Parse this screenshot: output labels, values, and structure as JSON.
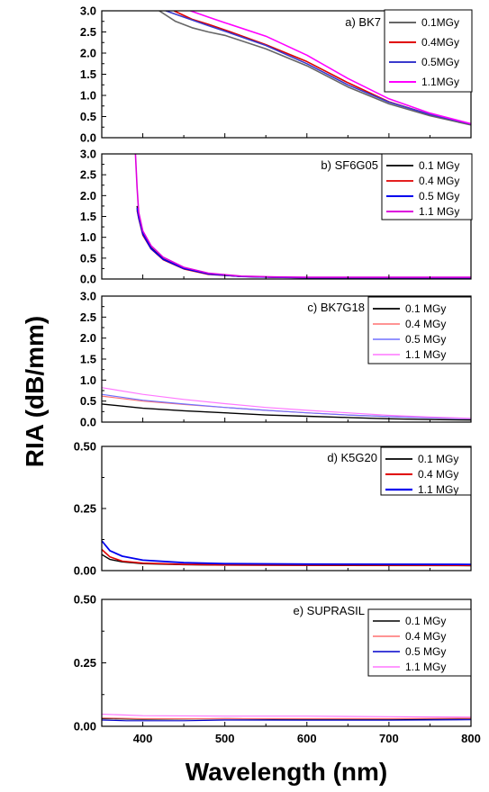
{
  "figure": {
    "ylabel": "RIA (dB/mm)",
    "xlabel": "Wavelength (nm)"
  },
  "chart_data": [
    {
      "type": "line",
      "panel_label": "a) BK7",
      "xlim": [
        350,
        800
      ],
      "ylim": [
        0,
        3.0
      ],
      "yticks": [
        "0.0",
        "0.5",
        "1.0",
        "1.5",
        "2.0",
        "2.5",
        "3.0"
      ],
      "xticks": [],
      "legend": "top-right",
      "series": [
        {
          "name": "0.1MGy",
          "color": "#666666",
          "width": 1.6,
          "x": [
            420,
            440,
            460,
            480,
            500,
            550,
            600,
            650,
            700,
            750,
            800
          ],
          "y": [
            3.0,
            2.75,
            2.6,
            2.5,
            2.42,
            2.1,
            1.7,
            1.2,
            0.8,
            0.52,
            0.3
          ]
        },
        {
          "name": "0.4MGy",
          "color": "#e00000",
          "width": 1.6,
          "x": [
            438,
            460,
            480,
            500,
            550,
            600,
            650,
            700,
            750,
            800
          ],
          "y": [
            3.0,
            2.8,
            2.68,
            2.55,
            2.2,
            1.8,
            1.3,
            0.85,
            0.55,
            0.32
          ]
        },
        {
          "name": "0.5MGy",
          "color": "#3a3acc",
          "width": 1.6,
          "x": [
            428,
            450,
            480,
            500,
            550,
            600,
            650,
            700,
            750,
            800
          ],
          "y": [
            3.0,
            2.85,
            2.65,
            2.52,
            2.18,
            1.75,
            1.25,
            0.84,
            0.55,
            0.32
          ]
        },
        {
          "name": "1.1MGy",
          "color": "#ff00ff",
          "width": 1.6,
          "x": [
            458,
            480,
            500,
            550,
            600,
            650,
            700,
            750,
            800
          ],
          "y": [
            3.0,
            2.85,
            2.72,
            2.4,
            1.95,
            1.4,
            0.92,
            0.58,
            0.33
          ]
        }
      ]
    },
    {
      "type": "line",
      "panel_label": "b) SF6G05",
      "xlim": [
        350,
        800
      ],
      "ylim": [
        0,
        3.0
      ],
      "yticks": [
        "0.0",
        "0.5",
        "1.0",
        "1.5",
        "2.0",
        "2.5",
        "3.0"
      ],
      "xticks": [],
      "legend": "top-right",
      "series": [
        {
          "name": "0.1 MGy",
          "color": "#000000",
          "width": 1.4,
          "x": [
            393,
            395,
            400,
            410,
            425,
            450,
            480,
            520,
            560,
            600,
            700,
            800
          ],
          "y": [
            1.75,
            1.5,
            1.1,
            0.75,
            0.48,
            0.25,
            0.12,
            0.06,
            0.04,
            0.03,
            0.03,
            0.03
          ]
        },
        {
          "name": "0.4 MGy",
          "color": "#e00000",
          "width": 1.4,
          "x": [
            393,
            395,
            400,
            410,
            425,
            450,
            480,
            520,
            560,
            600,
            700,
            800
          ],
          "y": [
            1.65,
            1.45,
            1.05,
            0.72,
            0.46,
            0.24,
            0.11,
            0.06,
            0.04,
            0.03,
            0.03,
            0.03
          ]
        },
        {
          "name": "0.5 MGy",
          "color": "#0000ee",
          "width": 1.6,
          "x": [
            393,
            395,
            400,
            410,
            425,
            450,
            480,
            520,
            560,
            600,
            700,
            800
          ],
          "y": [
            1.7,
            1.48,
            1.08,
            0.73,
            0.47,
            0.25,
            0.12,
            0.06,
            0.04,
            0.03,
            0.03,
            0.03
          ]
        },
        {
          "name": "1.1 MGy",
          "color": "#dd00dd",
          "width": 1.6,
          "x": [
            391,
            393,
            395,
            400,
            410,
            425,
            450,
            480,
            520,
            560,
            600,
            700,
            800
          ],
          "y": [
            3.0,
            2.2,
            1.6,
            1.15,
            0.8,
            0.52,
            0.28,
            0.14,
            0.07,
            0.05,
            0.04,
            0.04,
            0.04
          ]
        }
      ]
    },
    {
      "type": "line",
      "panel_label": "c) BK7G18",
      "xlim": [
        350,
        800
      ],
      "ylim": [
        0,
        3.0
      ],
      "yticks": [
        "0.0",
        "0.5",
        "1.0",
        "1.5",
        "2.0",
        "2.5",
        "3.0"
      ],
      "xticks": [],
      "legend": "top-right",
      "series": [
        {
          "name": "0.1 MGy",
          "color": "#000000",
          "width": 1.4,
          "x": [
            350,
            400,
            450,
            500,
            550,
            600,
            650,
            700,
            750,
            800
          ],
          "y": [
            0.43,
            0.33,
            0.27,
            0.22,
            0.17,
            0.14,
            0.11,
            0.08,
            0.06,
            0.05
          ]
        },
        {
          "name": "0.4 MGy",
          "color": "#ff7070",
          "width": 1.2,
          "x": [
            350,
            400,
            450,
            500,
            550,
            600,
            650,
            700,
            750,
            800
          ],
          "y": [
            0.62,
            0.5,
            0.42,
            0.35,
            0.28,
            0.22,
            0.17,
            0.13,
            0.1,
            0.08
          ]
        },
        {
          "name": "0.5 MGy",
          "color": "#7070ff",
          "width": 1.2,
          "x": [
            350,
            400,
            450,
            500,
            550,
            600,
            650,
            700,
            750,
            800
          ],
          "y": [
            0.66,
            0.52,
            0.43,
            0.35,
            0.28,
            0.22,
            0.17,
            0.13,
            0.1,
            0.08
          ]
        },
        {
          "name": "1.1 MGy",
          "color": "#ff77ff",
          "width": 1.2,
          "x": [
            350,
            400,
            450,
            500,
            550,
            600,
            650,
            700,
            750,
            800
          ],
          "y": [
            0.82,
            0.66,
            0.54,
            0.44,
            0.35,
            0.28,
            0.22,
            0.16,
            0.12,
            0.09
          ]
        }
      ]
    },
    {
      "type": "line",
      "panel_label": "d) K5G20",
      "xlim": [
        350,
        800
      ],
      "ylim": [
        0,
        0.5
      ],
      "yticks": [
        "0.00",
        "0.25",
        "0.50"
      ],
      "xticks": [],
      "legend": "top-right",
      "series": [
        {
          "name": "0.1 MGy",
          "color": "#000000",
          "width": 1.4,
          "x": [
            350,
            360,
            375,
            400,
            450,
            500,
            600,
            800
          ],
          "y": [
            0.065,
            0.045,
            0.035,
            0.028,
            0.024,
            0.022,
            0.021,
            0.02
          ]
        },
        {
          "name": "0.4 MGy",
          "color": "#e00000",
          "width": 1.6,
          "x": [
            350,
            360,
            375,
            400,
            450,
            500,
            600,
            800
          ],
          "y": [
            0.085,
            0.055,
            0.038,
            0.03,
            0.025,
            0.023,
            0.022,
            0.021
          ]
        },
        {
          "name": "1.1 MGy",
          "color": "#0000ee",
          "width": 1.8,
          "x": [
            350,
            360,
            375,
            400,
            450,
            500,
            600,
            800
          ],
          "y": [
            0.12,
            0.08,
            0.058,
            0.042,
            0.032,
            0.028,
            0.026,
            0.025
          ]
        }
      ]
    },
    {
      "type": "line",
      "panel_label": "e) SUPRASIL",
      "xlim": [
        350,
        800
      ],
      "ylim": [
        0,
        0.5
      ],
      "yticks": [
        "0.00",
        "0.25",
        "0.50"
      ],
      "xticks": [
        "400",
        "500",
        "600",
        "700",
        "800"
      ],
      "legend": "top-right",
      "series": [
        {
          "name": "0.1 MGy",
          "color": "#000000",
          "width": 1.2,
          "x": [
            350,
            400,
            500,
            600,
            700,
            800
          ],
          "y": [
            0.03,
            0.028,
            0.03,
            0.028,
            0.028,
            0.03
          ]
        },
        {
          "name": "0.4 MGy",
          "color": "#ff7070",
          "width": 1.2,
          "x": [
            350,
            400,
            500,
            600,
            700,
            800
          ],
          "y": [
            0.033,
            0.03,
            0.03,
            0.03,
            0.03,
            0.032
          ]
        },
        {
          "name": "0.5 MGy",
          "color": "#0000cc",
          "width": 1.2,
          "x": [
            350,
            380,
            450,
            500,
            600,
            700,
            800
          ],
          "y": [
            0.025,
            0.022,
            0.022,
            0.025,
            0.024,
            0.024,
            0.026
          ]
        },
        {
          "name": "1.1 MGy",
          "color": "#ff77ff",
          "width": 1.2,
          "x": [
            350,
            400,
            500,
            600,
            700,
            800
          ],
          "y": [
            0.048,
            0.042,
            0.04,
            0.04,
            0.038,
            0.036
          ]
        }
      ]
    }
  ]
}
